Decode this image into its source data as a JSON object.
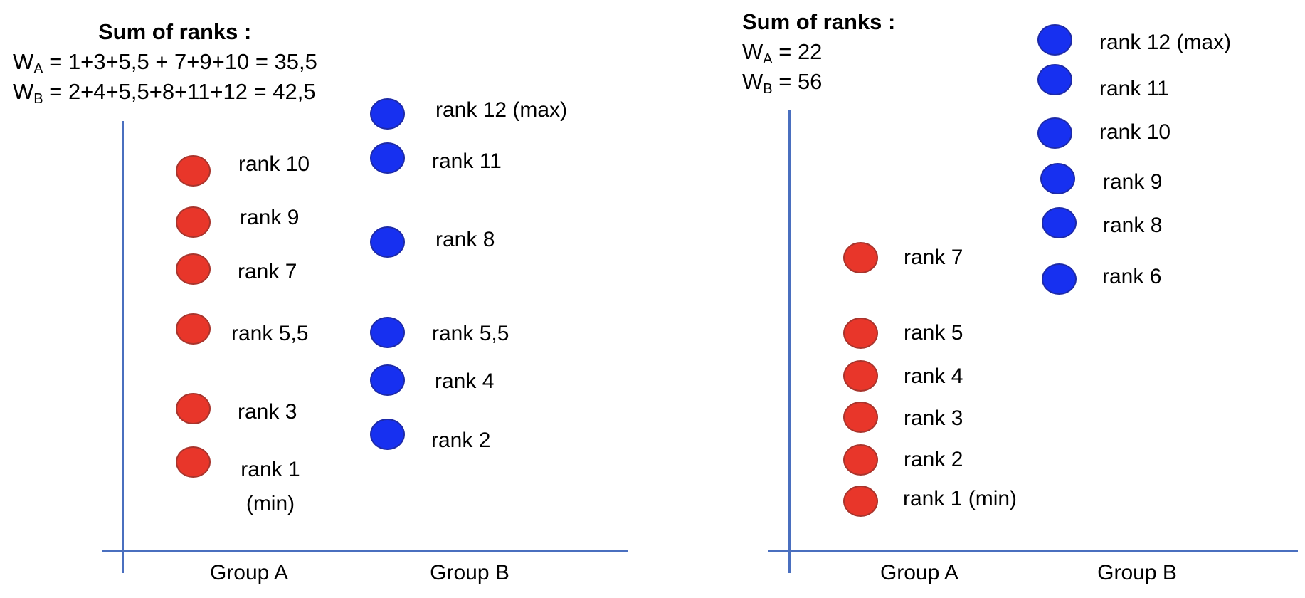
{
  "panels": [
    {
      "summary": {
        "title": "Sum of ranks :",
        "wa_letter": "W",
        "wa_sub": "A",
        "wa_expr": " = 1+3+5,5 + 7+9+10 = 35,5",
        "wb_letter": "W",
        "wb_sub": "B",
        "wb_expr": " = 2+4+5,5+8+11+12 = 42,5"
      },
      "groups": [
        "Group A",
        "Group B"
      ],
      "group_a_ranks": [
        "rank 10",
        "rank 9",
        "rank 7",
        "rank 5,5",
        "rank 3",
        "rank 1\n(min)"
      ],
      "group_b_ranks": [
        "rank 12 (max)",
        "rank 11",
        "rank 8",
        "rank 5,5",
        "rank 4",
        "rank 2"
      ]
    },
    {
      "summary": {
        "title": "Sum of ranks :",
        "wa_letter": "W",
        "wa_sub": "A",
        "wa_expr": " = 22",
        "wb_letter": "W",
        "wb_sub": "B",
        "wb_expr": " = 56"
      },
      "groups": [
        "Group A",
        "Group B"
      ],
      "group_a_ranks": [
        "rank 7",
        "rank 5",
        "rank 4",
        "rank 3",
        "rank 2",
        "rank 1 (min)"
      ],
      "group_b_ranks": [
        "rank 12 (max)",
        "rank 11",
        "rank 10",
        "rank 9",
        "rank 8",
        "rank 6"
      ]
    }
  ],
  "colors": {
    "group_a": "#e8362a",
    "group_b": "#1730f0",
    "axis": "#4a6fbf"
  }
}
